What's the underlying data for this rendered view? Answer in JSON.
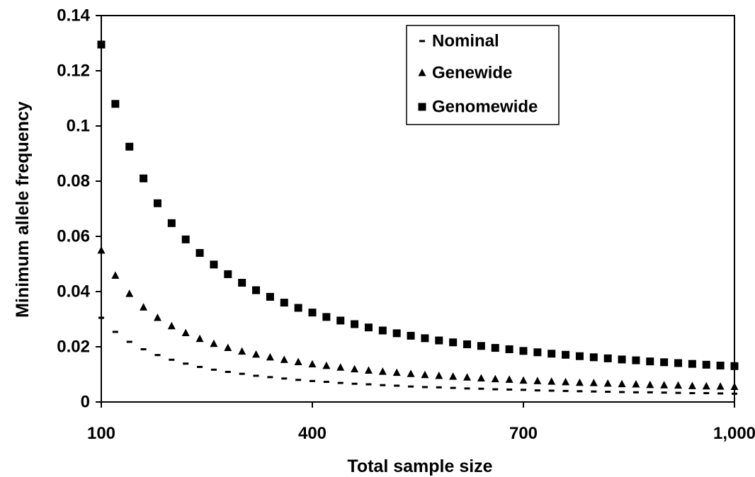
{
  "chart_data": {
    "type": "scatter",
    "title": "",
    "xlabel": "Total sample size",
    "ylabel": "Minimum allele frequency",
    "xlim": [
      100,
      1000
    ],
    "ylim": [
      0,
      0.14
    ],
    "x_ticks": [
      100,
      400,
      700,
      1000
    ],
    "x_tick_labels": [
      "100",
      "400",
      "700",
      "1,000"
    ],
    "y_ticks": [
      0,
      0.02,
      0.04,
      0.06,
      0.08,
      0.1,
      0.12,
      0.14
    ],
    "y_tick_labels": [
      "0",
      "0.02",
      "0.04",
      "0.06",
      "0.08",
      "0.1",
      "0.12",
      "0.14"
    ],
    "grid": false,
    "legend_position": "top-right",
    "x": [
      100,
      120,
      140,
      160,
      180,
      200,
      220,
      240,
      260,
      280,
      300,
      320,
      340,
      360,
      380,
      400,
      420,
      440,
      460,
      480,
      500,
      520,
      540,
      560,
      580,
      600,
      620,
      640,
      660,
      680,
      700,
      720,
      740,
      760,
      780,
      800,
      820,
      840,
      860,
      880,
      900,
      920,
      940,
      960,
      980,
      1000
    ],
    "series": [
      {
        "name": "Nominal",
        "marker": "dash",
        "values": [
          0.0305,
          0.0254,
          0.0218,
          0.0191,
          0.017,
          0.0153,
          0.0139,
          0.0127,
          0.0117,
          0.0109,
          0.0102,
          0.0095,
          0.009,
          0.0085,
          0.008,
          0.0076,
          0.0073,
          0.0069,
          0.0066,
          0.0064,
          0.0061,
          0.0059,
          0.0056,
          0.0054,
          0.0053,
          0.0051,
          0.0049,
          0.0048,
          0.0046,
          0.0045,
          0.0044,
          0.0042,
          0.0041,
          0.004,
          0.0039,
          0.0038,
          0.0037,
          0.0036,
          0.0035,
          0.0035,
          0.0034,
          0.0033,
          0.0032,
          0.0032,
          0.0031,
          0.003
        ]
      },
      {
        "name": "Genewide",
        "marker": "triangle",
        "values": [
          0.0549,
          0.0458,
          0.0392,
          0.0343,
          0.0305,
          0.0275,
          0.025,
          0.0229,
          0.0211,
          0.0196,
          0.0183,
          0.0172,
          0.0162,
          0.0153,
          0.0145,
          0.0137,
          0.0131,
          0.0125,
          0.0119,
          0.0114,
          0.011,
          0.0106,
          0.0102,
          0.0098,
          0.0095,
          0.0092,
          0.0089,
          0.0086,
          0.0083,
          0.0081,
          0.0078,
          0.0076,
          0.0074,
          0.0072,
          0.007,
          0.0069,
          0.0067,
          0.0065,
          0.0064,
          0.0062,
          0.0061,
          0.006,
          0.0058,
          0.0057,
          0.0056,
          0.0055
        ]
      },
      {
        "name": "Genomewide",
        "marker": "square",
        "values": [
          0.1295,
          0.108,
          0.0925,
          0.081,
          0.072,
          0.0648,
          0.0589,
          0.054,
          0.0498,
          0.0463,
          0.0432,
          0.0405,
          0.0381,
          0.036,
          0.0341,
          0.0324,
          0.0308,
          0.0295,
          0.0282,
          0.027,
          0.0259,
          0.0249,
          0.024,
          0.0231,
          0.0223,
          0.0216,
          0.0209,
          0.0203,
          0.0196,
          0.0191,
          0.0185,
          0.018,
          0.0175,
          0.0171,
          0.0166,
          0.0162,
          0.0158,
          0.0154,
          0.0151,
          0.0147,
          0.0144,
          0.0141,
          0.0138,
          0.0135,
          0.0132,
          0.013
        ]
      }
    ]
  }
}
